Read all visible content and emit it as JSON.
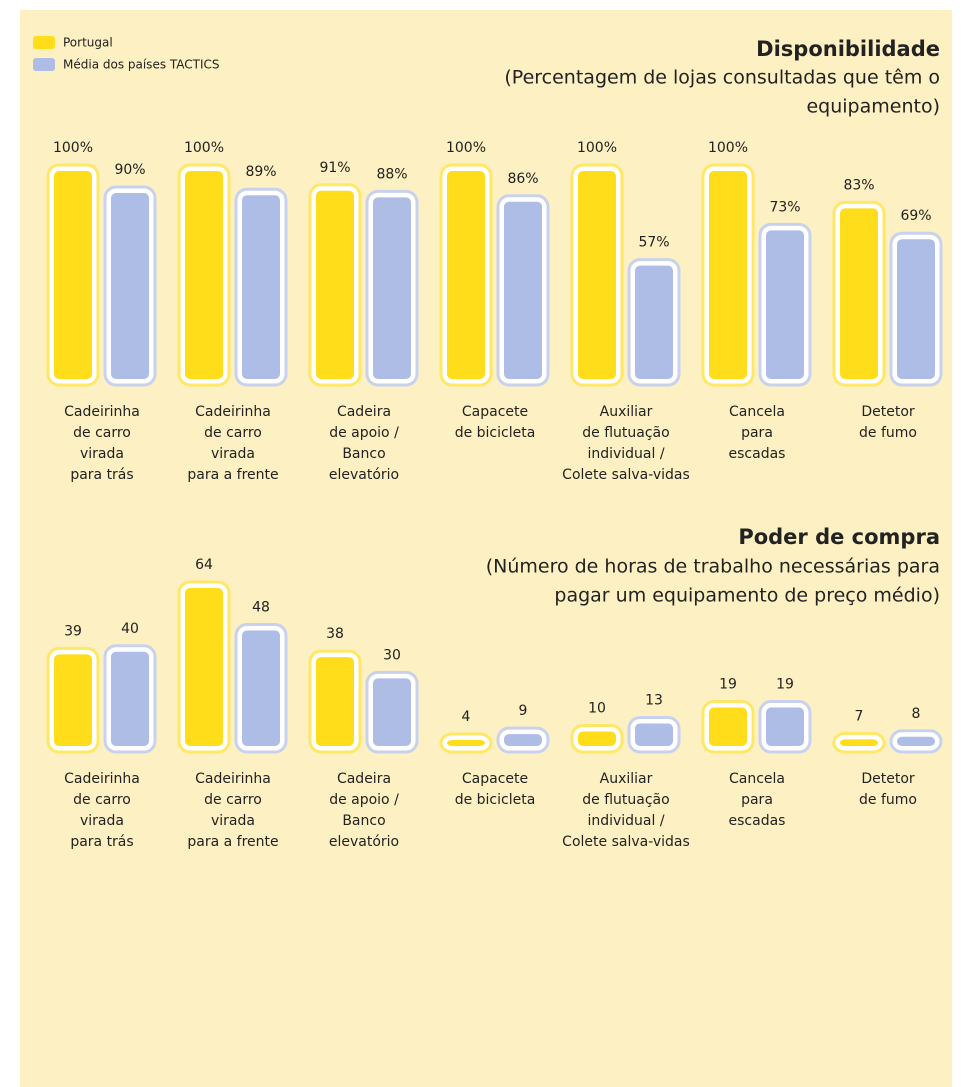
{
  "chart_data": [
    {
      "type": "bar",
      "title": "Disponibilidade",
      "subtitle": [
        "(Percentagem de lojas consultadas que têm o",
        "equipamento)"
      ],
      "categories": [
        [
          "Cadeirinha",
          "de carro",
          "virada",
          "para trás"
        ],
        [
          "Cadeirinha",
          "de carro",
          "virada",
          "para a frente"
        ],
        [
          "Cadeira",
          "de apoio /",
          "Banco",
          "elevatório"
        ],
        [
          "Capacete",
          "de bicicleta"
        ],
        [
          "Auxiliar",
          "de flutuação",
          "individual /",
          "Colete salva-vidas"
        ],
        [
          "Cancela",
          "para",
          "escadas"
        ],
        [
          "Detetor",
          "de fumo"
        ]
      ],
      "series": [
        {
          "name": "Portugal",
          "color": "#ffdd1a",
          "values": [
            100,
            100,
            91,
            100,
            100,
            100,
            83
          ],
          "value_labels": [
            "100%",
            "100%",
            "91%",
            "100%",
            "100%",
            "100%",
            "83%"
          ]
        },
        {
          "name": "Média dos países TACTICS",
          "color": "#aebde6",
          "values": [
            90,
            89,
            88,
            86,
            57,
            73,
            69
          ],
          "value_labels": [
            "90%",
            "89%",
            "88%",
            "86%",
            "57%",
            "73%",
            "69%"
          ]
        }
      ],
      "ylim": [
        0,
        100
      ],
      "legend": "top-left"
    },
    {
      "type": "bar",
      "title": "Poder de compra",
      "subtitle": [
        "(Número de horas de trabalho necessárias para",
        "pagar um equipamento de preço médio)"
      ],
      "categories": [
        [
          "Cadeirinha",
          "de carro",
          "virada",
          "para trás"
        ],
        [
          "Cadeirinha",
          "de carro",
          "virada",
          "para a frente"
        ],
        [
          "Cadeira",
          "de apoio /",
          "Banco",
          "elevatório"
        ],
        [
          "Capacete",
          "de bicicleta"
        ],
        [
          "Auxiliar",
          "de flutuação",
          "individual /",
          "Colete salva-vidas"
        ],
        [
          "Cancela",
          "para",
          "escadas"
        ],
        [
          "Detetor",
          "de fumo"
        ]
      ],
      "series": [
        {
          "name": "Portugal",
          "color": "#ffdd1a",
          "values": [
            39,
            64,
            38,
            4,
            10,
            19,
            7
          ]
        },
        {
          "name": "Média dos países TACTICS",
          "color": "#aebde6",
          "values": [
            40,
            48,
            30,
            9,
            13,
            19,
            8
          ]
        }
      ],
      "ylim": [
        0,
        64
      ]
    }
  ]
}
